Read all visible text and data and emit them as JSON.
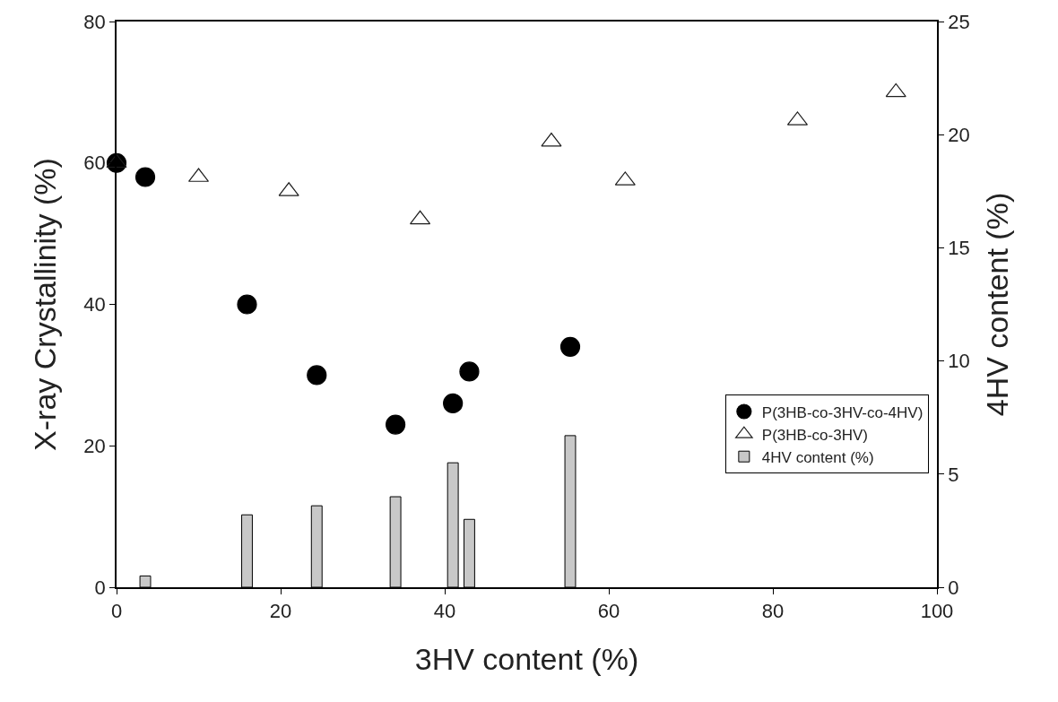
{
  "chart_data": {
    "type": "scatter",
    "xlabel": "3HV content (%)",
    "ylabel": "X-ray Crystallinity (%)",
    "y2label": "4HV content (%)",
    "xlim": [
      0,
      100
    ],
    "xticks": [
      0,
      20,
      40,
      60,
      80,
      100
    ],
    "ylim": [
      0,
      80
    ],
    "yticks": [
      0,
      20,
      40,
      60,
      80
    ],
    "y2lim": [
      0,
      25
    ],
    "y2ticks": [
      0,
      5,
      10,
      15,
      20,
      25
    ],
    "legend": "right",
    "series": [
      {
        "name": "P(3HB-co-3HV-co-4HV)",
        "marker": "circle",
        "color": "#000000",
        "x": [
          0,
          3.5,
          15.9,
          24.4,
          34,
          41,
          43,
          55.3
        ],
        "values": [
          60,
          58,
          40,
          30,
          23,
          26,
          30.5,
          34
        ]
      },
      {
        "name": "P(3HB-co-3HV)",
        "marker": "triangle",
        "color": "#1e1e1e",
        "x": [
          0,
          10,
          21,
          37,
          53,
          62,
          83,
          95
        ],
        "values": [
          60,
          58,
          56,
          52,
          63,
          57.5,
          66,
          70
        ]
      },
      {
        "name": "4HV content (%)",
        "type": "bar",
        "axis": "y2",
        "color": "#c8c8c8",
        "x": [
          3.5,
          15.9,
          24.4,
          34,
          41,
          43,
          55.3
        ],
        "values": [
          0.5,
          3.2,
          3.6,
          4.0,
          5.5,
          3.0,
          6.7
        ]
      }
    ]
  }
}
